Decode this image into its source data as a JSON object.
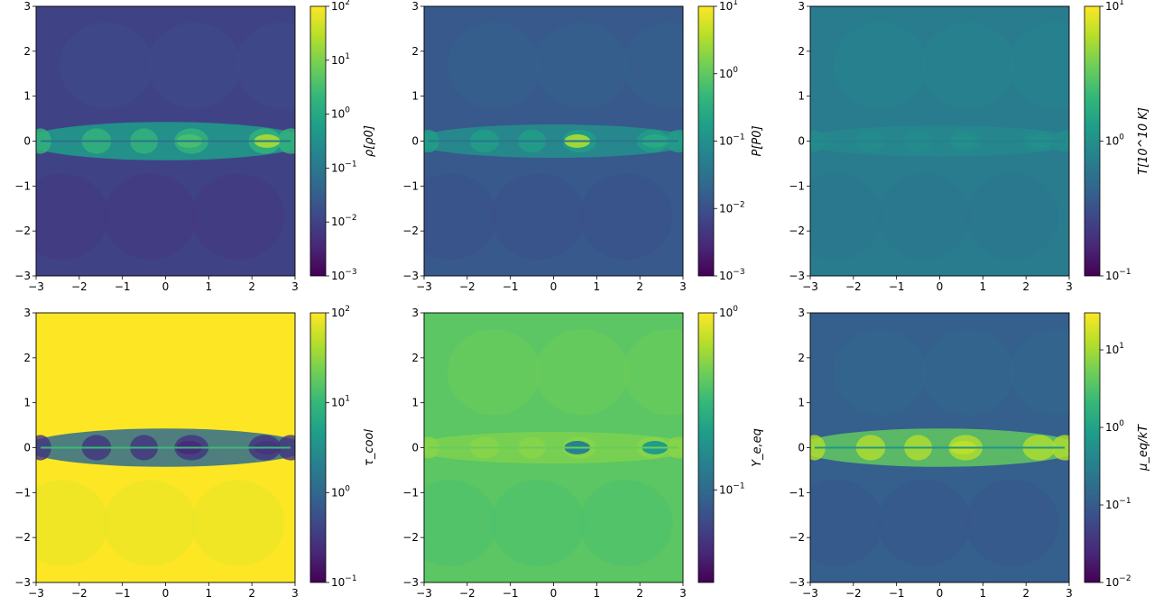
{
  "colormap": "viridis",
  "colors": {
    "viridis": [
      "#440154",
      "#482878",
      "#3e4989",
      "#31688e",
      "#26828e",
      "#1f9e89",
      "#35b779",
      "#6ece58",
      "#b5de2b",
      "#fde725"
    ]
  },
  "chart_data": [
    {
      "type": "heatmap",
      "title": "",
      "xlabel": "",
      "ylabel": "",
      "xlim": [
        -3,
        3
      ],
      "ylim": [
        -3,
        3
      ],
      "x_ticks": [
        "−3",
        "−2",
        "−1",
        "0",
        "1",
        "2",
        "3"
      ],
      "y_ticks": [
        "−3",
        "−2",
        "−1",
        "0",
        "1",
        "2",
        "3"
      ],
      "colorbar": {
        "label": "ρ[ρ0]",
        "scale": "log",
        "range": [
          0.001,
          100
        ],
        "tick_labels": [
          "10^2",
          "10^1",
          "10^0",
          "10^−1",
          "10^−2",
          "10^−3"
        ]
      },
      "field": {
        "background_level": 0.2,
        "jet_level": 0.55,
        "hot_spots": [
          0.7,
          0.85
        ],
        "jet_width": 0.35
      }
    },
    {
      "type": "heatmap",
      "title": "",
      "xlabel": "",
      "ylabel": "",
      "xlim": [
        -3,
        3
      ],
      "ylim": [
        -3,
        3
      ],
      "x_ticks": [
        "−3",
        "−2",
        "−1",
        "0",
        "1",
        "2",
        "3"
      ],
      "y_ticks": [
        "−3",
        "−2",
        "−1",
        "0",
        "1",
        "2",
        "3"
      ],
      "colorbar": {
        "label": "P[P0]",
        "scale": "log",
        "range": [
          0.001,
          10
        ],
        "tick_labels": [
          "10^1",
          "10^0",
          "10^−1",
          "10^−2",
          "10^−3"
        ]
      },
      "field": {
        "background_level": 0.28,
        "jet_level": 0.5,
        "hot_spots": [
          0.85,
          0.6
        ],
        "jet_width": 0.2
      }
    },
    {
      "type": "heatmap",
      "title": "",
      "xlabel": "",
      "ylabel": "",
      "xlim": [
        -3,
        3
      ],
      "ylim": [
        -3,
        3
      ],
      "x_ticks": [
        "−3",
        "−2",
        "−1",
        "0",
        "1",
        "2",
        "3"
      ],
      "y_ticks": [
        "−3",
        "−2",
        "−1",
        "0",
        "1",
        "2",
        "3"
      ],
      "colorbar": {
        "label": "T[10^10 K]",
        "scale": "log",
        "range": [
          0.1,
          10
        ],
        "tick_labels": [
          "10^1",
          "10^0",
          "10^−1"
        ]
      },
      "field": {
        "background_level": 0.42,
        "jet_level": 0.47,
        "hot_spots": [
          0.5,
          0.5
        ],
        "jet_width": 0.12
      }
    },
    {
      "type": "heatmap",
      "title": "",
      "xlabel": "",
      "ylabel": "",
      "xlim": [
        -3,
        3
      ],
      "ylim": [
        -3,
        3
      ],
      "x_ticks": [
        "−3",
        "−2",
        "−1",
        "0",
        "1",
        "2",
        "3"
      ],
      "y_ticks": [
        "−3",
        "−2",
        "−1",
        "0",
        "1",
        "2",
        "3"
      ],
      "colorbar": {
        "label": "τ_cool",
        "scale": "log",
        "range": [
          0.1,
          100
        ],
        "tick_labels": [
          "10^2",
          "10^1",
          "10^0",
          "10^−1"
        ]
      },
      "field": {
        "background_level": 1.0,
        "jet_level": 0.35,
        "hot_spots": [
          0.12,
          0.15
        ],
        "jet_width": 0.35
      }
    },
    {
      "type": "heatmap",
      "title": "",
      "xlabel": "",
      "ylabel": "",
      "xlim": [
        -3,
        3
      ],
      "ylim": [
        -3,
        3
      ],
      "x_ticks": [
        "−3",
        "−2",
        "−1",
        "0",
        "1",
        "2",
        "3"
      ],
      "y_ticks": [
        "−3",
        "−2",
        "−1",
        "0",
        "1",
        "2",
        "3"
      ],
      "colorbar": {
        "label": "Y_e,eq",
        "scale": "log",
        "range": [
          0.03,
          1.0
        ],
        "tick_labels": [
          "10^0",
          "10^−1"
        ]
      },
      "field": {
        "background_level": 0.74,
        "jet_level": 0.8,
        "hot_spots": [
          0.45,
          0.55
        ],
        "jet_width": 0.15
      }
    },
    {
      "type": "heatmap",
      "title": "",
      "xlabel": "",
      "ylabel": "",
      "xlim": [
        -3,
        3
      ],
      "ylim": [
        -3,
        3
      ],
      "x_ticks": [
        "−3",
        "−2",
        "−1",
        "0",
        "1",
        "2",
        "3"
      ],
      "y_ticks": [
        "−3",
        "−2",
        "−1",
        "0",
        "1",
        "2",
        "3"
      ],
      "colorbar": {
        "label": "μ_eq/kT",
        "scale": "log",
        "range": [
          0.01,
          30
        ],
        "tick_labels": [
          "10^1",
          "10^0",
          "10^−1",
          "10^−2"
        ]
      },
      "field": {
        "background_level": 0.3,
        "jet_level": 0.75,
        "hot_spots": [
          0.9,
          0.85
        ],
        "jet_width": 0.35
      }
    }
  ]
}
